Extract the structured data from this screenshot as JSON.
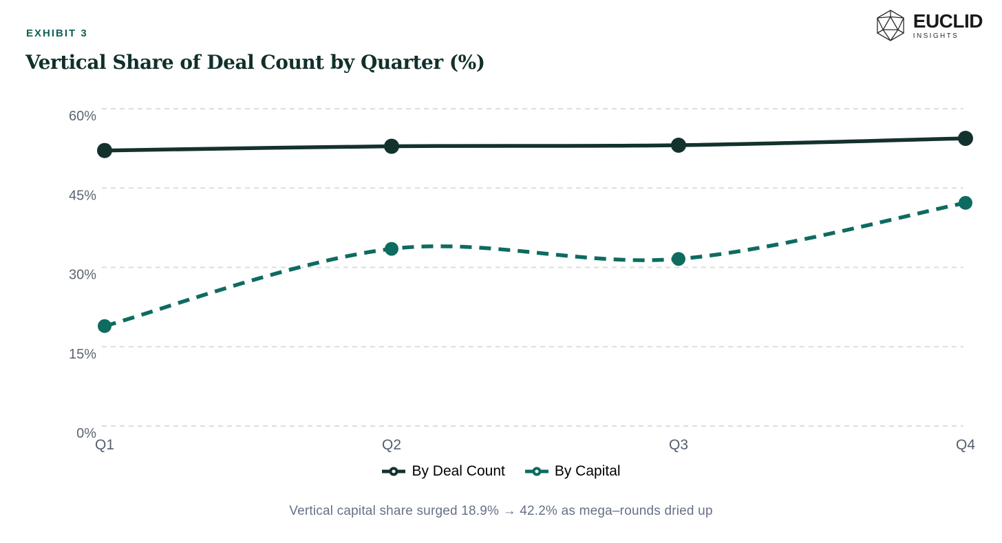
{
  "header": {
    "exhibit_label": "EXHIBIT 3",
    "title": "Vertical Share of Deal Count by Quarter (%)"
  },
  "logo": {
    "name": "EUCLID",
    "subtitle": "INSIGHTS"
  },
  "chart_data": {
    "type": "line",
    "title": "Vertical Share of Deal Count by Quarter (%)",
    "categories": [
      "Q1",
      "Q2",
      "Q3",
      "Q4"
    ],
    "series": [
      {
        "name": "By Deal Count",
        "values": [
          52.1,
          52.9,
          53.1,
          54.4
        ],
        "color": "#13322d",
        "style": "solid",
        "marker_radius": 11
      },
      {
        "name": "By Capital",
        "values": [
          18.9,
          33.5,
          31.6,
          42.2
        ],
        "color": "#0e6b60",
        "style": "dashed",
        "marker_radius": 10
      }
    ],
    "ylim": [
      0,
      60
    ],
    "yticks": [
      0,
      15,
      30,
      45,
      60
    ],
    "ytick_suffix": "%",
    "xlabel": "",
    "ylabel": "",
    "grid": "horizontal-dashed",
    "grid_color": "#dddddd",
    "legend_position": "bottom"
  },
  "caption": "Vertical capital share surged 18.9% → 42.2% as mega–rounds dried up",
  "colors": {
    "accent_teal": "#0e6b60",
    "series_dark": "#13322d",
    "exhibit_label": "#0c5f55",
    "axis_text": "#5c6572",
    "caption_text": "#667085",
    "gridline": "#dddddd"
  }
}
